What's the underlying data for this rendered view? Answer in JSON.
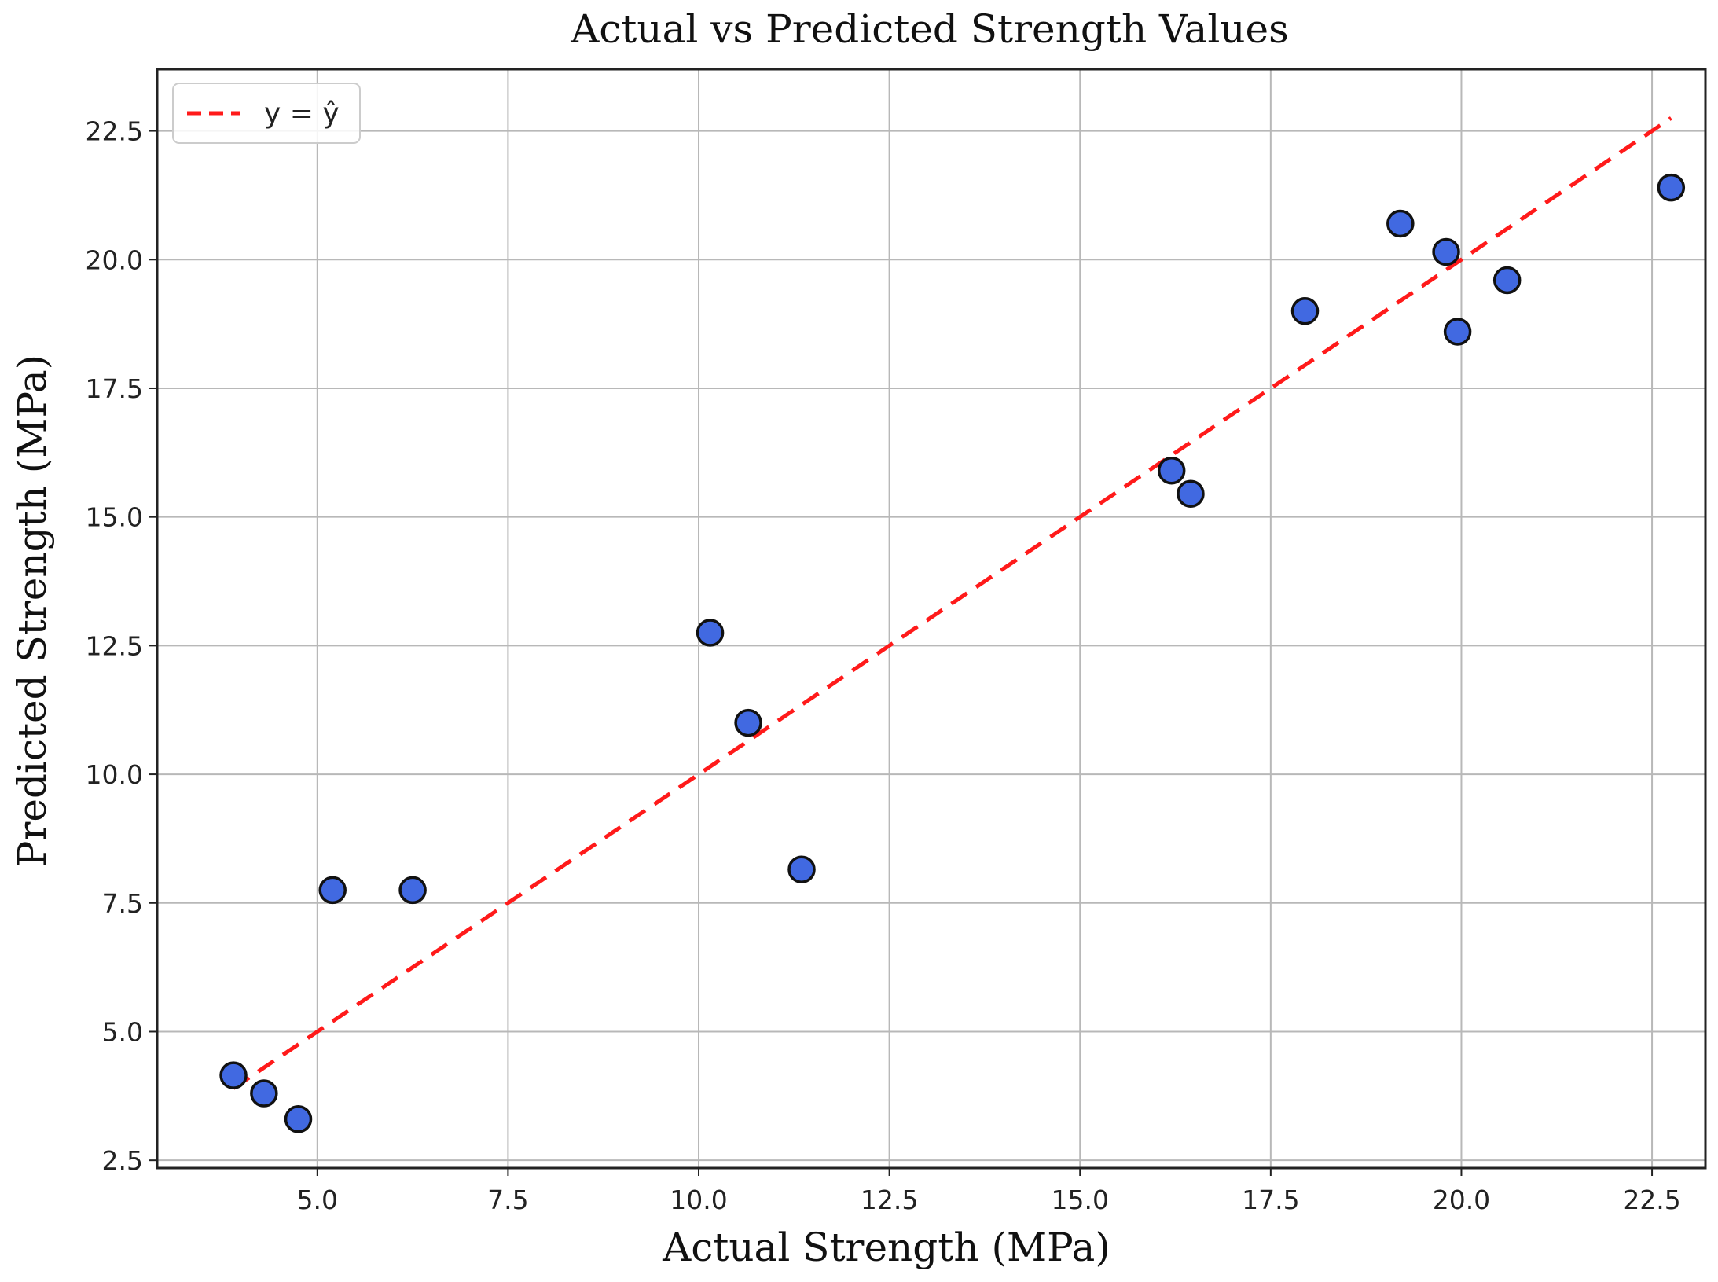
{
  "chart_data": {
    "type": "scatter",
    "title": "Actual vs Predicted Strength Values",
    "xlabel": "Actual Strength (MPa)",
    "ylabel": "Predicted Strength (MPa)",
    "xlim": [
      2.9,
      23.2
    ],
    "ylim": [
      2.35,
      23.7
    ],
    "xticks": [
      5.0,
      7.5,
      10.0,
      12.5,
      15.0,
      17.5,
      20.0,
      22.5
    ],
    "xtick_labels": [
      "5.0",
      "7.5",
      "10.0",
      "12.5",
      "15.0",
      "17.5",
      "20.0",
      "22.5"
    ],
    "yticks": [
      2.5,
      5.0,
      7.5,
      10.0,
      12.5,
      15.0,
      17.5,
      20.0,
      22.5
    ],
    "ytick_labels": [
      "2.5",
      "5.0",
      "7.5",
      "10.0",
      "12.5",
      "15.0",
      "17.5",
      "20.0",
      "22.5"
    ],
    "grid": true,
    "legend_position": "top-left",
    "points": {
      "color": "#4169e1",
      "edge_color": "#111111",
      "x": [
        3.9,
        4.3,
        4.75,
        5.2,
        6.25,
        10.15,
        10.65,
        11.35,
        16.2,
        16.45,
        17.95,
        19.2,
        19.8,
        19.95,
        20.6,
        22.75
      ],
      "y": [
        4.15,
        3.8,
        3.3,
        7.75,
        7.75,
        12.75,
        11.0,
        8.15,
        15.9,
        15.45,
        19.0,
        20.7,
        20.15,
        18.6,
        19.6,
        21.4
      ]
    },
    "reference_line": {
      "name": "y = ŷ",
      "color": "#ff1a1a",
      "style": "dashed",
      "x": [
        3.9,
        22.75
      ],
      "y": [
        3.9,
        22.75
      ]
    }
  }
}
